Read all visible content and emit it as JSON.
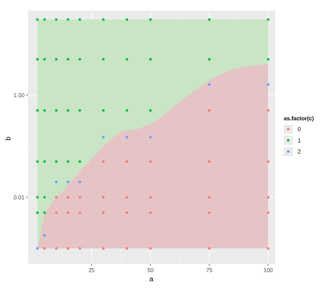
{
  "chart_data": {
    "type": "scatter",
    "xlabel": "a",
    "ylabel": "b",
    "x_ticks": [
      {
        "value": 25,
        "label": "25"
      },
      {
        "value": 50,
        "label": "50"
      },
      {
        "value": 75,
        "label": "75"
      },
      {
        "value": 100,
        "label": "100"
      }
    ],
    "y_ticks": [
      {
        "value": 1.0,
        "label": "1.00"
      },
      {
        "value": 0.01,
        "label": "0.01"
      }
    ],
    "y_scale": "log10",
    "xlim": [
      -2,
      103
    ],
    "ylim": [
      0.0005,
      45
    ],
    "grid": true,
    "legend": {
      "title": "as.factor(c)",
      "position": "right",
      "entries": [
        {
          "label": "0",
          "color": "#f8766d"
        },
        {
          "label": "1",
          "color": "#00ba38"
        },
        {
          "label": "2",
          "color": "#619cff"
        }
      ]
    },
    "regions": [
      {
        "class": "1",
        "fill": "#c9e5c6",
        "boundary_x": [
          2,
          100
        ],
        "top": 30
      },
      {
        "class": "0",
        "fill": "#e6c4c6",
        "boundary": [
          [
            2,
            0.001
          ],
          [
            3,
            0.0016
          ],
          [
            5,
            0.0045
          ],
          [
            8,
            0.008
          ],
          [
            12,
            0.012
          ],
          [
            18,
            0.026
          ],
          [
            24,
            0.05
          ],
          [
            30,
            0.1
          ],
          [
            37,
            0.19
          ],
          [
            45,
            0.22
          ],
          [
            52,
            0.3
          ],
          [
            60,
            0.6
          ],
          [
            68,
            1.15
          ],
          [
            76,
            2.1
          ],
          [
            85,
            3.2
          ],
          [
            92,
            3.7
          ],
          [
            100,
            4.0
          ]
        ],
        "bottom": 0.001
      }
    ],
    "series": [
      {
        "name": "0",
        "color": "#f8766d",
        "points": [
          [
            5,
            0.001
          ],
          [
            10,
            0.001
          ],
          [
            15,
            0.001
          ],
          [
            20,
            0.001
          ],
          [
            30,
            0.001
          ],
          [
            40,
            0.001
          ],
          [
            50,
            0.001
          ],
          [
            75,
            0.001
          ],
          [
            100,
            0.001
          ],
          [
            10,
            0.005
          ],
          [
            15,
            0.005
          ],
          [
            20,
            0.005
          ],
          [
            30,
            0.005
          ],
          [
            40,
            0.005
          ],
          [
            50,
            0.005
          ],
          [
            75,
            0.005
          ],
          [
            100,
            0.005
          ],
          [
            10,
            0.01
          ],
          [
            15,
            0.01
          ],
          [
            20,
            0.01
          ],
          [
            30,
            0.01
          ],
          [
            40,
            0.01
          ],
          [
            50,
            0.01
          ],
          [
            75,
            0.01
          ],
          [
            100,
            0.01
          ],
          [
            30,
            0.05
          ],
          [
            40,
            0.05
          ],
          [
            50,
            0.05
          ],
          [
            75,
            0.05
          ],
          [
            100,
            0.05
          ],
          [
            75,
            0.5
          ],
          [
            100,
            0.5
          ]
        ]
      },
      {
        "name": "1",
        "color": "#00ba38",
        "points": [
          [
            2,
            30
          ],
          [
            5,
            30
          ],
          [
            10,
            30
          ],
          [
            15,
            30
          ],
          [
            20,
            30
          ],
          [
            30,
            30
          ],
          [
            40,
            30
          ],
          [
            50,
            30
          ],
          [
            75,
            30
          ],
          [
            100,
            30
          ],
          [
            2,
            5
          ],
          [
            5,
            5
          ],
          [
            10,
            5
          ],
          [
            15,
            5
          ],
          [
            20,
            5
          ],
          [
            30,
            5
          ],
          [
            40,
            5
          ],
          [
            50,
            5
          ],
          [
            75,
            5
          ],
          [
            100,
            5
          ],
          [
            2,
            0.5
          ],
          [
            5,
            0.5
          ],
          [
            10,
            0.5
          ],
          [
            15,
            0.5
          ],
          [
            20,
            0.5
          ],
          [
            30,
            0.5
          ],
          [
            40,
            0.5
          ],
          [
            50,
            0.5
          ],
          [
            2,
            0.05
          ],
          [
            5,
            0.05
          ],
          [
            10,
            0.05
          ],
          [
            15,
            0.05
          ],
          [
            20,
            0.05
          ],
          [
            2,
            0.01
          ],
          [
            5,
            0.01
          ],
          [
            2,
            0.005
          ],
          [
            5,
            0.005
          ]
        ]
      },
      {
        "name": "2",
        "color": "#619cff",
        "points": [
          [
            2,
            0.001
          ],
          [
            5,
            0.0018
          ],
          [
            10,
            0.02
          ],
          [
            15,
            0.02
          ],
          [
            20,
            0.02
          ],
          [
            30,
            0.15
          ],
          [
            40,
            0.15
          ],
          [
            50,
            0.15
          ],
          [
            75,
            1.6
          ],
          [
            100,
            1.6
          ]
        ]
      }
    ]
  }
}
